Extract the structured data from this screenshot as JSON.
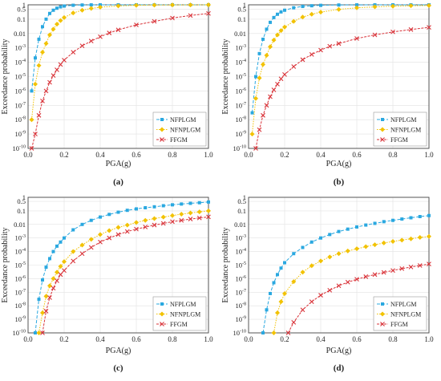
{
  "colors": {
    "NFPLGM": "#2aa8e0",
    "NFNPLGM": "#f2c200",
    "FFGM": "#d9343a",
    "axis": "#444444",
    "grid": "#e2e2e2"
  },
  "chart_data": [
    {
      "panel_label": "(a)",
      "type": "line",
      "xlabel": "PGA(g)",
      "ylabel": "Exceedance probability",
      "xlim": [
        0,
        1.0
      ],
      "ylim": [
        1e-10,
        1
      ],
      "y_scale": "log",
      "grid": true,
      "legend_position": "bottom-right",
      "xticks": [
        "0.0",
        "0.2",
        "0.4",
        "0.6",
        "0.8",
        "1.0"
      ],
      "yticks": [
        "10^-10",
        "10^-9",
        "10^-8",
        "10^-7",
        "10^-6",
        "10^-5",
        "10^-4",
        "10^-3",
        "0.01",
        "0.1",
        "0.5",
        "1"
      ],
      "series": [
        {
          "name": "NFPLGM",
          "marker": "square",
          "x": [
            0.02,
            0.04,
            0.06,
            0.08,
            0.1,
            0.12,
            0.14,
            0.16,
            0.18,
            0.2,
            0.25,
            0.3,
            0.35,
            0.4,
            0.5,
            0.6,
            0.7,
            0.8,
            0.9,
            1.0
          ],
          "y": [
            1e-06,
            0.0002,
            0.004,
            0.03,
            0.1,
            0.25,
            0.42,
            0.58,
            0.72,
            0.82,
            0.93,
            0.97,
            0.99,
            0.995,
            0.998,
            0.999,
            1,
            1,
            1,
            1
          ]
        },
        {
          "name": "NFNPLGM",
          "marker": "diamond",
          "x": [
            0.02,
            0.04,
            0.06,
            0.08,
            0.1,
            0.12,
            0.14,
            0.16,
            0.18,
            0.2,
            0.25,
            0.3,
            0.35,
            0.4,
            0.5,
            0.6,
            0.7,
            0.8,
            0.9,
            1.0
          ],
          "y": [
            1e-08,
            3e-06,
            6e-05,
            0.0005,
            0.002,
            0.008,
            0.02,
            0.045,
            0.08,
            0.13,
            0.27,
            0.42,
            0.56,
            0.68,
            0.84,
            0.92,
            0.96,
            0.98,
            0.99,
            0.995
          ]
        },
        {
          "name": "FFGM",
          "marker": "x",
          "x": [
            0.02,
            0.04,
            0.06,
            0.08,
            0.1,
            0.12,
            0.14,
            0.16,
            0.18,
            0.2,
            0.25,
            0.3,
            0.35,
            0.4,
            0.45,
            0.5,
            0.6,
            0.7,
            0.8,
            0.9,
            1.0
          ],
          "y": [
            1e-10,
            1e-09,
            2e-08,
            2e-07,
            1e-06,
            4e-06,
            1.2e-05,
            3e-05,
            7e-05,
            0.00014,
            0.0005,
            0.0014,
            0.003,
            0.006,
            0.011,
            0.018,
            0.04,
            0.07,
            0.12,
            0.18,
            0.25
          ]
        }
      ]
    },
    {
      "panel_label": "(b)",
      "type": "line",
      "xlabel": "PGA(g)",
      "ylabel": "Exceedance probability",
      "xlim": [
        0,
        1.0
      ],
      "ylim": [
        1e-10,
        1
      ],
      "y_scale": "log",
      "grid": true,
      "legend_position": "bottom-right",
      "xticks": [
        "0.0",
        "0.2",
        "0.4",
        "0.6",
        "0.8",
        "1.0"
      ],
      "yticks": [
        "10^-10",
        "10^-9",
        "10^-8",
        "10^-7",
        "10^-6",
        "10^-5",
        "10^-4",
        "10^-3",
        "0.01",
        "0.1",
        "0.5",
        "1"
      ],
      "series": [
        {
          "name": "NFPLGM",
          "marker": "square",
          "x": [
            0.02,
            0.04,
            0.06,
            0.08,
            0.1,
            0.12,
            0.14,
            0.16,
            0.18,
            0.2,
            0.25,
            0.3,
            0.35,
            0.4,
            0.5,
            0.6,
            0.7,
            0.8,
            0.9,
            1.0
          ],
          "y": [
            3e-08,
            1e-05,
            0.0004,
            0.004,
            0.02,
            0.06,
            0.13,
            0.22,
            0.32,
            0.42,
            0.62,
            0.77,
            0.86,
            0.92,
            0.97,
            0.99,
            0.995,
            0.998,
            0.999,
            1
          ]
        },
        {
          "name": "NFNPLGM",
          "marker": "diamond",
          "x": [
            0.02,
            0.04,
            0.06,
            0.08,
            0.1,
            0.12,
            0.14,
            0.16,
            0.18,
            0.2,
            0.25,
            0.3,
            0.35,
            0.4,
            0.5,
            0.6,
            0.7,
            0.8,
            0.9,
            1.0
          ],
          "y": [
            1e-09,
            3e-07,
            8e-06,
            7e-05,
            0.0003,
            0.0012,
            0.0035,
            0.008,
            0.016,
            0.028,
            0.07,
            0.14,
            0.22,
            0.31,
            0.48,
            0.62,
            0.72,
            0.8,
            0.86,
            0.9
          ]
        },
        {
          "name": "FFGM",
          "marker": "x",
          "x": [
            0.04,
            0.06,
            0.08,
            0.1,
            0.12,
            0.14,
            0.16,
            0.18,
            0.2,
            0.25,
            0.3,
            0.35,
            0.4,
            0.45,
            0.5,
            0.6,
            0.7,
            0.8,
            0.9,
            1.0
          ],
          "y": [
            1e-10,
            2e-09,
            2e-08,
            1e-07,
            4e-07,
            1.2e-06,
            3e-06,
            7e-06,
            1.4e-05,
            5e-05,
            0.00015,
            0.00035,
            0.0007,
            0.0013,
            0.002,
            0.0045,
            0.008,
            0.013,
            0.019,
            0.027
          ]
        }
      ]
    },
    {
      "panel_label": "(c)",
      "type": "line",
      "xlabel": "PGA(g)",
      "ylabel": "Exceedance probability",
      "xlim": [
        0,
        1.0
      ],
      "ylim": [
        1e-10,
        1
      ],
      "y_scale": "log",
      "grid": true,
      "legend_position": "bottom-right",
      "xticks": [
        "0.0",
        "0.2",
        "0.4",
        "0.6",
        "0.8",
        "1.0"
      ],
      "yticks": [
        "10^-10",
        "10^-9",
        "10^-8",
        "10^-7",
        "10^-6",
        "10^-5",
        "10^-4",
        "10^-3",
        "0.01",
        "0.1",
        "0.5",
        "1"
      ],
      "series": [
        {
          "name": "NFPLGM",
          "marker": "square",
          "x": [
            0.04,
            0.06,
            0.08,
            0.1,
            0.12,
            0.14,
            0.16,
            0.18,
            0.2,
            0.25,
            0.3,
            0.35,
            0.4,
            0.45,
            0.5,
            0.55,
            0.6,
            0.65,
            0.7,
            0.75,
            0.8,
            0.85,
            0.9,
            0.95,
            1.0
          ],
          "y": [
            1e-10,
            3e-08,
            8e-07,
            7e-06,
            3e-05,
            0.0001,
            0.00025,
            0.0005,
            0.001,
            0.004,
            0.01,
            0.02,
            0.035,
            0.055,
            0.08,
            0.11,
            0.14,
            0.17,
            0.2,
            0.24,
            0.28,
            0.32,
            0.36,
            0.4,
            0.45
          ]
        },
        {
          "name": "NFNPLGM",
          "marker": "diamond",
          "x": [
            0.06,
            0.08,
            0.1,
            0.12,
            0.14,
            0.16,
            0.18,
            0.2,
            0.25,
            0.3,
            0.35,
            0.4,
            0.45,
            0.5,
            0.55,
            0.6,
            0.65,
            0.7,
            0.75,
            0.8,
            0.85,
            0.9,
            0.95,
            1.0
          ],
          "y": [
            1e-10,
            3e-09,
            5e-08,
            3e-07,
            1e-06,
            3e-06,
            8e-06,
            1.8e-05,
            0.0001,
            0.0003,
            0.0008,
            0.0018,
            0.0035,
            0.006,
            0.009,
            0.014,
            0.02,
            0.027,
            0.035,
            0.045,
            0.057,
            0.07,
            0.085,
            0.1
          ]
        },
        {
          "name": "FFGM",
          "marker": "x",
          "x": [
            0.08,
            0.1,
            0.12,
            0.14,
            0.16,
            0.18,
            0.2,
            0.25,
            0.3,
            0.35,
            0.4,
            0.45,
            0.5,
            0.55,
            0.6,
            0.65,
            0.7,
            0.75,
            0.8,
            0.85,
            0.9,
            0.95,
            1.0
          ],
          "y": [
            1e-10,
            4e-09,
            4e-08,
            2e-07,
            7e-07,
            2e-06,
            4e-06,
            2e-05,
            7e-05,
            0.0002,
            0.0005,
            0.001,
            0.0018,
            0.003,
            0.0045,
            0.0065,
            0.009,
            0.012,
            0.016,
            0.02,
            0.025,
            0.03,
            0.036
          ]
        }
      ]
    },
    {
      "panel_label": "(d)",
      "type": "line",
      "xlabel": "PGA(g)",
      "ylabel": "Exceedance probability",
      "xlim": [
        0,
        1.0
      ],
      "ylim": [
        1e-10,
        1
      ],
      "y_scale": "log",
      "grid": true,
      "legend_position": "bottom-right",
      "xticks": [
        "0.0",
        "0.2",
        "0.4",
        "0.6",
        "0.8",
        "1.0"
      ],
      "yticks": [
        "10^-10",
        "10^-9",
        "10^-8",
        "10^-7",
        "10^-6",
        "10^-5",
        "10^-4",
        "10^-3",
        "0.01",
        "0.1",
        "0.5",
        "1"
      ],
      "series": [
        {
          "name": "NFPLGM",
          "marker": "square",
          "x": [
            0.08,
            0.1,
            0.12,
            0.14,
            0.16,
            0.18,
            0.2,
            0.25,
            0.3,
            0.35,
            0.4,
            0.45,
            0.5,
            0.55,
            0.6,
            0.65,
            0.7,
            0.75,
            0.8,
            0.85,
            0.9,
            0.95,
            1.0
          ],
          "y": [
            1e-10,
            5e-09,
            8e-08,
            5e-07,
            2e-06,
            6e-06,
            1.5e-05,
            7e-05,
            0.0002,
            0.0005,
            0.001,
            0.0018,
            0.003,
            0.0045,
            0.0065,
            0.009,
            0.012,
            0.016,
            0.02,
            0.025,
            0.031,
            0.038,
            0.045
          ]
        },
        {
          "name": "NFNPLGM",
          "marker": "diamond",
          "x": [
            0.14,
            0.16,
            0.18,
            0.2,
            0.25,
            0.3,
            0.35,
            0.4,
            0.45,
            0.5,
            0.55,
            0.6,
            0.65,
            0.7,
            0.75,
            0.8,
            0.85,
            0.9,
            0.95,
            1.0
          ],
          "y": [
            1e-10,
            3e-09,
            2e-08,
            8e-08,
            6e-07,
            3e-06,
            9e-06,
            2e-05,
            4e-05,
            7e-05,
            0.00011,
            0.00016,
            0.00023,
            0.00032,
            0.00043,
            0.00056,
            0.0007,
            0.00087,
            0.0011,
            0.0013
          ]
        },
        {
          "name": "FFGM",
          "marker": "x",
          "x": [
            0.22,
            0.25,
            0.3,
            0.35,
            0.4,
            0.45,
            0.5,
            0.55,
            0.6,
            0.65,
            0.7,
            0.75,
            0.8,
            0.85,
            0.9,
            0.95,
            1.0
          ],
          "y": [
            1e-10,
            6e-10,
            5e-09,
            2e-08,
            6e-08,
            1.4e-07,
            3e-07,
            5.5e-07,
            9e-07,
            1.4e-06,
            2e-06,
            2.9e-06,
            4e-06,
            5.5e-06,
            7.2e-06,
            9.3e-06,
            1.2e-05
          ]
        }
      ]
    }
  ]
}
